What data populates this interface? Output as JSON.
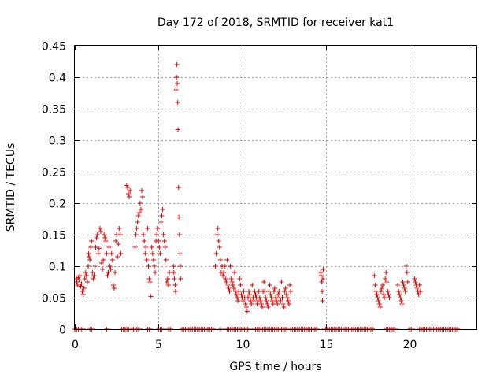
{
  "chart_data": {
    "type": "scatter",
    "title": "Day 172 of 2018, SRMTID for receiver kat1",
    "xlabel": "GPS time / hours",
    "ylabel": "SRMTID / TECUs",
    "xlim": [
      0,
      24
    ],
    "ylim": [
      0,
      0.45
    ],
    "grid": true,
    "legend": "none",
    "marker": "+",
    "color": "#dd0000",
    "x_ticks": [
      0,
      5,
      10,
      15,
      20
    ],
    "x_tick_labels": [
      "0",
      "5",
      "10",
      "15",
      "20"
    ],
    "y_ticks": [
      0,
      0.05,
      0.1,
      0.15,
      0.2,
      0.25,
      0.3,
      0.35,
      0.4,
      0.45
    ],
    "y_tick_labels": [
      "0",
      "0.05",
      "0.1",
      "0.15",
      "0.2",
      "0.25",
      "0.3",
      "0.35",
      "0.4",
      "0.45"
    ],
    "points": [
      [
        0.1,
        0.08
      ],
      [
        0.12,
        0.075
      ],
      [
        0.15,
        0.07
      ],
      [
        0.2,
        0.082
      ],
      [
        0.25,
        0.078
      ],
      [
        0.3,
        0.085
      ],
      [
        0.35,
        0.068
      ],
      [
        0.4,
        0.072
      ],
      [
        0.45,
        0.06
      ],
      [
        0.5,
        0.055
      ],
      [
        0.55,
        0.065
      ],
      [
        0.6,
        0.08
      ],
      [
        0.65,
        0.09
      ],
      [
        0.7,
        0.085
      ],
      [
        0.75,
        0.075
      ],
      [
        0.8,
        0.1
      ],
      [
        0.82,
        0.12
      ],
      [
        0.85,
        0.115
      ],
      [
        0.9,
        0.11
      ],
      [
        0.95,
        0.13
      ],
      [
        1.0,
        0.14
      ],
      [
        1.05,
        0.09
      ],
      [
        1.1,
        0.08
      ],
      [
        1.15,
        0.085
      ],
      [
        1.2,
        0.1
      ],
      [
        1.25,
        0.13
      ],
      [
        1.3,
        0.145
      ],
      [
        1.35,
        0.15
      ],
      [
        1.4,
        0.12
      ],
      [
        1.45,
        0.128
      ],
      [
        1.5,
        0.16
      ],
      [
        1.55,
        0.155
      ],
      [
        1.6,
        0.105
      ],
      [
        1.65,
        0.095
      ],
      [
        1.7,
        0.11
      ],
      [
        1.75,
        0.15
      ],
      [
        1.8,
        0.145
      ],
      [
        1.85,
        0.14
      ],
      [
        1.9,
        0.12
      ],
      [
        1.95,
        0.085
      ],
      [
        2.0,
        0.09
      ],
      [
        2.05,
        0.13
      ],
      [
        2.1,
        0.1
      ],
      [
        2.15,
        0.095
      ],
      [
        2.2,
        0.12
      ],
      [
        2.25,
        0.11
      ],
      [
        2.3,
        0.07
      ],
      [
        2.35,
        0.065
      ],
      [
        2.4,
        0.09
      ],
      [
        2.45,
        0.14
      ],
      [
        2.5,
        0.15
      ],
      [
        2.55,
        0.115
      ],
      [
        2.6,
        0.135
      ],
      [
        2.65,
        0.16
      ],
      [
        2.7,
        0.15
      ],
      [
        2.75,
        0.12
      ],
      [
        3.1,
        0.228
      ],
      [
        3.15,
        0.225
      ],
      [
        3.2,
        0.215
      ],
      [
        3.25,
        0.21
      ],
      [
        3.3,
        0.22
      ],
      [
        3.6,
        0.13
      ],
      [
        3.65,
        0.15
      ],
      [
        3.7,
        0.16
      ],
      [
        3.75,
        0.17
      ],
      [
        3.8,
        0.18
      ],
      [
        3.85,
        0.185
      ],
      [
        3.9,
        0.2
      ],
      [
        3.95,
        0.19
      ],
      [
        4.0,
        0.22
      ],
      [
        4.05,
        0.21
      ],
      [
        4.1,
        0.15
      ],
      [
        4.15,
        0.14
      ],
      [
        4.2,
        0.12
      ],
      [
        4.25,
        0.13
      ],
      [
        4.3,
        0.11
      ],
      [
        4.35,
        0.16
      ],
      [
        4.4,
        0.1
      ],
      [
        4.45,
        0.08
      ],
      [
        4.5,
        0.075
      ],
      [
        4.55,
        0.052
      ],
      [
        4.6,
        0.13
      ],
      [
        4.65,
        0.12
      ],
      [
        4.7,
        0.11
      ],
      [
        4.75,
        0.1
      ],
      [
        4.8,
        0.09
      ],
      [
        4.85,
        0.14
      ],
      [
        4.9,
        0.15
      ],
      [
        4.95,
        0.16
      ],
      [
        5.0,
        0.14
      ],
      [
        5.05,
        0.13
      ],
      [
        5.1,
        0.12
      ],
      [
        5.15,
        0.17
      ],
      [
        5.2,
        0.18
      ],
      [
        5.25,
        0.19
      ],
      [
        5.3,
        0.15
      ],
      [
        5.35,
        0.14
      ],
      [
        5.4,
        0.13
      ],
      [
        5.45,
        0.11
      ],
      [
        5.5,
        0.075
      ],
      [
        5.55,
        0.08
      ],
      [
        5.6,
        0.07
      ],
      [
        5.65,
        0.09
      ],
      [
        5.9,
        0.1
      ],
      [
        5.92,
        0.09
      ],
      [
        5.95,
        0.08
      ],
      [
        6.0,
        0.07
      ],
      [
        6.02,
        0.06
      ],
      [
        6.05,
        0.38
      ],
      [
        6.08,
        0.4
      ],
      [
        6.1,
        0.42
      ],
      [
        6.12,
        0.39
      ],
      [
        6.15,
        0.36
      ],
      [
        6.17,
        0.317
      ],
      [
        6.2,
        0.225
      ],
      [
        6.22,
        0.178
      ],
      [
        6.25,
        0.15
      ],
      [
        6.28,
        0.12
      ],
      [
        6.3,
        0.1
      ],
      [
        6.32,
        0.08
      ],
      [
        8.4,
        0.1
      ],
      [
        8.45,
        0.12
      ],
      [
        8.5,
        0.15
      ],
      [
        8.55,
        0.16
      ],
      [
        8.6,
        0.14
      ],
      [
        8.65,
        0.13
      ],
      [
        8.7,
        0.11
      ],
      [
        8.75,
        0.09
      ],
      [
        8.8,
        0.1
      ],
      [
        8.85,
        0.085
      ],
      [
        8.9,
        0.09
      ],
      [
        8.95,
        0.1
      ],
      [
        9.0,
        0.08
      ],
      [
        9.05,
        0.075
      ],
      [
        9.1,
        0.11
      ],
      [
        9.15,
        0.07
      ],
      [
        9.2,
        0.065
      ],
      [
        9.25,
        0.06
      ],
      [
        9.3,
        0.1
      ],
      [
        9.35,
        0.08
      ],
      [
        9.4,
        0.075
      ],
      [
        9.45,
        0.07
      ],
      [
        9.5,
        0.065
      ],
      [
        9.55,
        0.09
      ],
      [
        9.6,
        0.06
      ],
      [
        9.65,
        0.055
      ],
      [
        9.7,
        0.05
      ],
      [
        9.75,
        0.045
      ],
      [
        9.8,
        0.06
      ],
      [
        9.85,
        0.08
      ],
      [
        9.9,
        0.07
      ],
      [
        9.95,
        0.055
      ],
      [
        10.0,
        0.05
      ],
      [
        10.05,
        0.045
      ],
      [
        10.1,
        0.06
      ],
      [
        10.15,
        0.05
      ],
      [
        10.2,
        0.04
      ],
      [
        10.25,
        0.035
      ],
      [
        10.3,
        0.028
      ],
      [
        10.35,
        0.05
      ],
      [
        10.4,
        0.06
      ],
      [
        10.45,
        0.055
      ],
      [
        10.5,
        0.045
      ],
      [
        10.55,
        0.04
      ],
      [
        10.6,
        0.07
      ],
      [
        10.65,
        0.05
      ],
      [
        10.7,
        0.045
      ],
      [
        10.75,
        0.06
      ],
      [
        10.8,
        0.055
      ],
      [
        10.85,
        0.05
      ],
      [
        10.9,
        0.04
      ],
      [
        10.95,
        0.045
      ],
      [
        11.0,
        0.06
      ],
      [
        11.05,
        0.05
      ],
      [
        11.1,
        0.045
      ],
      [
        11.15,
        0.04
      ],
      [
        11.2,
        0.035
      ],
      [
        11.25,
        0.06
      ],
      [
        11.3,
        0.075
      ],
      [
        11.35,
        0.06
      ],
      [
        11.4,
        0.05
      ],
      [
        11.45,
        0.045
      ],
      [
        11.5,
        0.04
      ],
      [
        11.55,
        0.035
      ],
      [
        11.6,
        0.06
      ],
      [
        11.65,
        0.07
      ],
      [
        11.7,
        0.055
      ],
      [
        11.75,
        0.05
      ],
      [
        11.8,
        0.045
      ],
      [
        11.85,
        0.04
      ],
      [
        11.9,
        0.06
      ],
      [
        11.95,
        0.065
      ],
      [
        12.0,
        0.05
      ],
      [
        12.05,
        0.045
      ],
      [
        12.1,
        0.04
      ],
      [
        12.15,
        0.055
      ],
      [
        12.2,
        0.06
      ],
      [
        12.25,
        0.05
      ],
      [
        12.3,
        0.045
      ],
      [
        12.35,
        0.075
      ],
      [
        12.4,
        0.05
      ],
      [
        12.45,
        0.04
      ],
      [
        12.5,
        0.035
      ],
      [
        12.55,
        0.06
      ],
      [
        12.6,
        0.065
      ],
      [
        12.65,
        0.055
      ],
      [
        12.7,
        0.05
      ],
      [
        12.75,
        0.045
      ],
      [
        12.8,
        0.04
      ],
      [
        12.85,
        0.07
      ],
      [
        12.9,
        0.06
      ],
      [
        14.7,
        0.09
      ],
      [
        14.72,
        0.085
      ],
      [
        14.75,
        0.075
      ],
      [
        14.78,
        0.06
      ],
      [
        14.8,
        0.045
      ],
      [
        14.82,
        0.08
      ],
      [
        14.85,
        0.095
      ],
      [
        17.9,
        0.085
      ],
      [
        17.95,
        0.07
      ],
      [
        18.0,
        0.06
      ],
      [
        18.05,
        0.055
      ],
      [
        18.1,
        0.05
      ],
      [
        18.15,
        0.045
      ],
      [
        18.2,
        0.04
      ],
      [
        18.25,
        0.035
      ],
      [
        18.3,
        0.06
      ],
      [
        18.35,
        0.065
      ],
      [
        18.4,
        0.07
      ],
      [
        18.45,
        0.055
      ],
      [
        18.5,
        0.05
      ],
      [
        18.55,
        0.08
      ],
      [
        18.6,
        0.09
      ],
      [
        18.65,
        0.075
      ],
      [
        18.7,
        0.06
      ],
      [
        18.75,
        0.055
      ],
      [
        18.8,
        0.05
      ],
      [
        19.3,
        0.07
      ],
      [
        19.35,
        0.06
      ],
      [
        19.4,
        0.055
      ],
      [
        19.45,
        0.05
      ],
      [
        19.5,
        0.045
      ],
      [
        19.55,
        0.04
      ],
      [
        19.6,
        0.075
      ],
      [
        19.65,
        0.07
      ],
      [
        19.7,
        0.065
      ],
      [
        19.75,
        0.06
      ],
      [
        19.8,
        0.1
      ],
      [
        19.85,
        0.09
      ],
      [
        19.9,
        0.075
      ],
      [
        20.3,
        0.08
      ],
      [
        20.35,
        0.075
      ],
      [
        20.4,
        0.07
      ],
      [
        20.45,
        0.065
      ],
      [
        20.5,
        0.06
      ],
      [
        20.55,
        0.055
      ],
      [
        20.6,
        0.07
      ],
      [
        20.65,
        0.06
      ]
    ],
    "zero_segments": [
      [
        0.0,
        0.5
      ],
      [
        0.9,
        1.05
      ],
      [
        1.9,
        2.0
      ],
      [
        2.8,
        3.3
      ],
      [
        3.4,
        3.9
      ],
      [
        4.35,
        4.55
      ],
      [
        5.0,
        5.3
      ],
      [
        5.6,
        5.75
      ],
      [
        6.4,
        8.3
      ],
      [
        8.7,
        8.8
      ],
      [
        9.1,
        10.4
      ],
      [
        10.7,
        12.7
      ],
      [
        12.9,
        14.5
      ],
      [
        14.9,
        17.8
      ],
      [
        18.6,
        19.2
      ],
      [
        20.0,
        20.2
      ],
      [
        20.6,
        22.9
      ]
    ]
  }
}
